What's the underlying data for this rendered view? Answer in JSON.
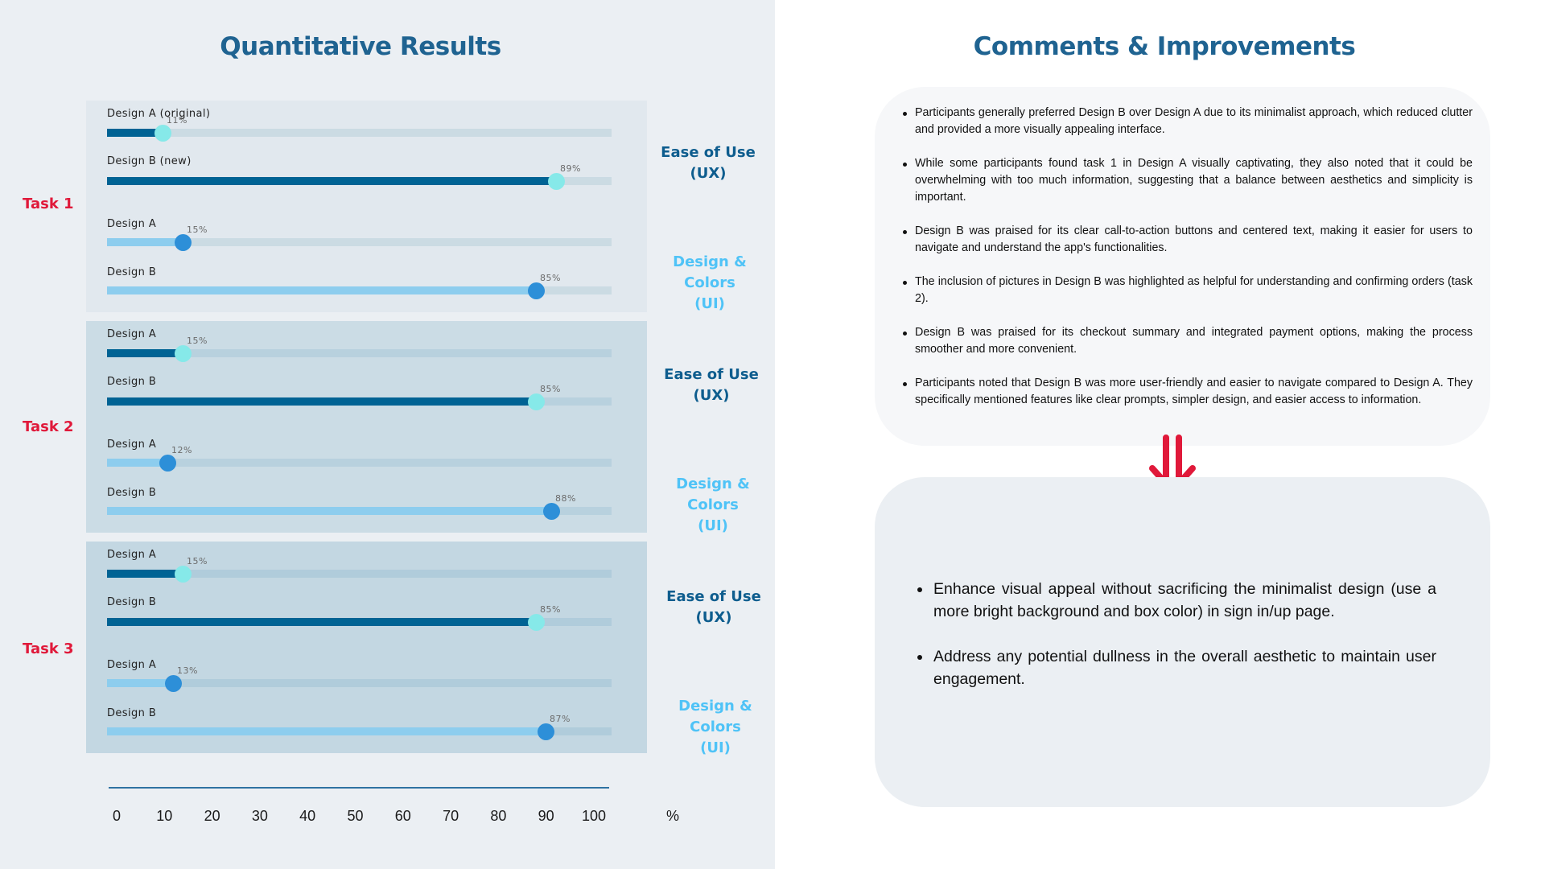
{
  "left": {
    "title": "Quantitative Results",
    "tasks": [
      {
        "label": "Task 1",
        "panel_color": "#e1e8ee",
        "track_color": "#cbdbe3",
        "rows": [
          {
            "label": "Design A (original)",
            "value": 11,
            "value_label": "11%",
            "category": "ux"
          },
          {
            "label": "Design B (new)",
            "value": 89,
            "value_label": "89%",
            "category": "ux"
          },
          {
            "label": "Design A",
            "value": 15,
            "value_label": "15%",
            "category": "ui"
          },
          {
            "label": "Design B",
            "value": 85,
            "value_label": "85%",
            "category": "ui"
          }
        ],
        "categories": [
          "Ease of Use\n(UX)",
          "Design & Colors\n(UI)"
        ]
      },
      {
        "label": "Task 2",
        "panel_color": "#cbdce5",
        "track_color": "#b8d1de",
        "rows": [
          {
            "label": "Design A",
            "value": 15,
            "value_label": "15%",
            "category": "ux"
          },
          {
            "label": "Design B",
            "value": 85,
            "value_label": "85%",
            "category": "ux"
          },
          {
            "label": "Design A",
            "value": 12,
            "value_label": "12%",
            "category": "ui"
          },
          {
            "label": "Design B",
            "value": 88,
            "value_label": "88%",
            "category": "ui"
          }
        ],
        "categories": [
          "Ease of Use\n(UX)",
          "Design & Colors\n(UI)"
        ]
      },
      {
        "label": "Task 3",
        "panel_color": "#c3d7e2",
        "track_color": "#b0ccdb",
        "rows": [
          {
            "label": "Design A",
            "value": 15,
            "value_label": "15%",
            "category": "ux"
          },
          {
            "label": "Design B",
            "value": 85,
            "value_label": "85%",
            "category": "ux"
          },
          {
            "label": "Design A",
            "value": 13,
            "value_label": "13%",
            "category": "ui"
          },
          {
            "label": "Design B",
            "value": 87,
            "value_label": "87%",
            "category": "ui"
          }
        ],
        "categories": [
          "Ease of Use\n(UX)",
          "Design & Colors\n(UI)"
        ]
      }
    ],
    "category_labels": {
      "ux_line1": "Ease of Use",
      "ux_line2": "(UX)",
      "ui_line1": "Design & Colors",
      "ui_line2": "(UI)"
    },
    "axis": {
      "ticks": [
        "0",
        "10",
        "20",
        "30",
        "40",
        "50",
        "60",
        "70",
        "80",
        "90",
        "100"
      ],
      "unit": "%"
    }
  },
  "right": {
    "title": "Comments & Improvements",
    "comments": [
      "Participants generally preferred Design B over Design A due to its minimalist approach, which reduced clutter and provided a more visually appealing interface.",
      "While some participants found task 1 in Design A visually captivating, they also noted that it could be overwhelming with too much information, suggesting that a balance between aesthetics and simplicity is important.",
      "Design B was praised for its clear call-to-action buttons and centered text, making it easier for users to navigate and understand the app's functionalities.",
      "The inclusion of pictures in Design B was highlighted as helpful for understanding and confirming orders (task 2).",
      "Design B was praised for its checkout summary and integrated payment options, making the process smoother and more convenient.",
      "Participants noted that Design B was more user-friendly and easier to navigate compared to Design A. They specifically mentioned features like clear prompts, simpler design, and easier access to information."
    ],
    "improvements": [
      "Enhance visual appeal without sacrificing the minimalist design (use a more bright background and box color) in sign in/up page.",
      "Address any potential dullness in the overall aesthetic to maintain user engagement."
    ]
  },
  "colors": {
    "title": "#1f6391",
    "task_label": "#e0193a",
    "ux_fill": "#006394",
    "ux_knob": "#86e9e9",
    "ui_fill": "#8dcdee",
    "ui_knob": "#2d8fd8",
    "ux_label": "#0e5d8e",
    "ui_label": "#4fc3f7",
    "arrow": "#e0193a"
  },
  "chart_data": {
    "type": "bar",
    "title": "Quantitative Results",
    "xlabel": "%",
    "xlim": [
      0,
      100
    ],
    "orientation": "horizontal",
    "categories": [
      "Task 1 - Ease of Use (UX)",
      "Task 1 - Design & Colors (UI)",
      "Task 2 - Ease of Use (UX)",
      "Task 2 - Design & Colors (UI)",
      "Task 3 - Ease of Use (UX)",
      "Task 3 - Design & Colors (UI)"
    ],
    "series": [
      {
        "name": "Design A",
        "values": [
          11,
          15,
          15,
          12,
          15,
          13
        ]
      },
      {
        "name": "Design B",
        "values": [
          89,
          85,
          85,
          88,
          85,
          87
        ]
      }
    ],
    "tick_labels": [
      "0",
      "10",
      "20",
      "30",
      "40",
      "50",
      "60",
      "70",
      "80",
      "90",
      "100"
    ],
    "grid": false
  }
}
